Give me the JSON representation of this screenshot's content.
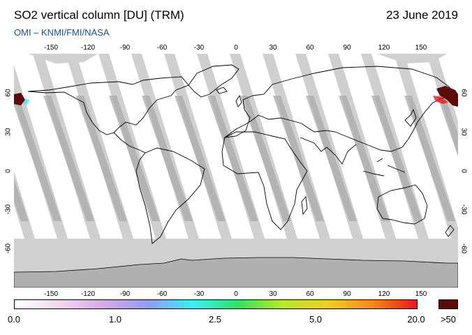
{
  "header": {
    "title": "SO2 vertical column [DU] (TRM)",
    "date": "23 June 2019",
    "credit": "OMI  –  KNMI/FMI/NASA"
  },
  "axes": {
    "lon_ticks": [
      "-150",
      "-120",
      "-90",
      "-60",
      "-30",
      "0",
      "30",
      "60",
      "90",
      "120",
      "150"
    ],
    "lat_ticks": [
      "60",
      "30",
      "0",
      "-30",
      "-60"
    ]
  },
  "colorbar": {
    "labels": [
      "0.0",
      "1.0",
      "2.5",
      "5.0",
      "20.0"
    ],
    "overflow_label": ">50",
    "stops": [
      "#ffffff",
      "#f2d6f2",
      "#d8a8e6",
      "#8f9ff0",
      "#38f0f6",
      "#35e060",
      "#b7e82b",
      "#f0d020",
      "#f28a1f",
      "#e8181a"
    ],
    "overflow_color": "#5c0a0a"
  },
  "map": {
    "background": "#ffffff",
    "gap_color": "#cfcfcf",
    "overlap_color": "#a9a9a9",
    "polar_color": "#d0d0d0",
    "antarctica_color": "#b0b0b0",
    "coast_color": "#000000"
  }
}
